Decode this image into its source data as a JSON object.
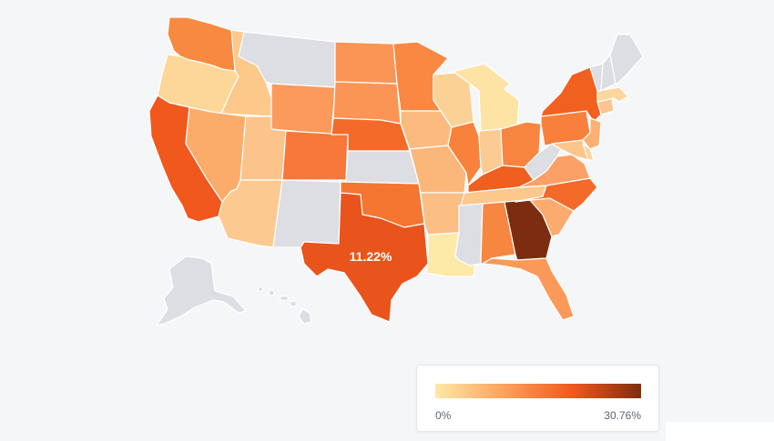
{
  "map": {
    "highlight_label": "11.22%",
    "no_data_color": "#dcdee4",
    "states": [
      {
        "id": "WA",
        "color": "#f78a40"
      },
      {
        "id": "OR",
        "color": "#fcd798"
      },
      {
        "id": "CA",
        "color": "#f0581e"
      },
      {
        "id": "ID",
        "color": "#fcc98a"
      },
      {
        "id": "NV",
        "color": "#fbac6b"
      },
      {
        "id": "MT",
        "color": "#dcdee4"
      },
      {
        "id": "WY",
        "color": "#fb9a5a"
      },
      {
        "id": "UT",
        "color": "#fcc38a"
      },
      {
        "id": "AZ",
        "color": "#fcca90"
      },
      {
        "id": "CO",
        "color": "#f7783a"
      },
      {
        "id": "NM",
        "color": "#dcdee4"
      },
      {
        "id": "ND",
        "color": "#fb9556"
      },
      {
        "id": "SD",
        "color": "#fb9556"
      },
      {
        "id": "NE",
        "color": "#f46a28"
      },
      {
        "id": "KS",
        "color": "#dcdee4"
      },
      {
        "id": "OK",
        "color": "#f47630"
      },
      {
        "id": "TX",
        "color": "#e9541c"
      },
      {
        "id": "MN",
        "color": "#f88842"
      },
      {
        "id": "IA",
        "color": "#fbbb80"
      },
      {
        "id": "MO",
        "color": "#fbb77a"
      },
      {
        "id": "AR",
        "color": "#fbbe84"
      },
      {
        "id": "LA",
        "color": "#fdeaa8"
      },
      {
        "id": "WI",
        "color": "#fcd196"
      },
      {
        "id": "MI",
        "color": "#fde4a4"
      },
      {
        "id": "IL",
        "color": "#f8823c"
      },
      {
        "id": "IN",
        "color": "#fccb94"
      },
      {
        "id": "OH",
        "color": "#f8853f"
      },
      {
        "id": "KY",
        "color": "#ee5f20"
      },
      {
        "id": "TN",
        "color": "#fcc88c"
      },
      {
        "id": "MS",
        "color": "#dcdee4"
      },
      {
        "id": "AL",
        "color": "#f78640"
      },
      {
        "id": "GA",
        "color": "#7d2d0f"
      },
      {
        "id": "FL",
        "color": "#fb9a58"
      },
      {
        "id": "SC",
        "color": "#fbab6e"
      },
      {
        "id": "NC",
        "color": "#f46a2a"
      },
      {
        "id": "VA",
        "color": "#fba066"
      },
      {
        "id": "WV",
        "color": "#dcdee4"
      },
      {
        "id": "PA",
        "color": "#f8803c"
      },
      {
        "id": "NY",
        "color": "#f2601f"
      },
      {
        "id": "MD",
        "color": "#fcc58c"
      },
      {
        "id": "NJ",
        "color": "#fbb074"
      },
      {
        "id": "DE",
        "color": "#fcd296"
      },
      {
        "id": "CT",
        "color": "#fcc590"
      },
      {
        "id": "MA",
        "color": "#fcd79d"
      },
      {
        "id": "VT",
        "color": "#dcdee4"
      },
      {
        "id": "NH",
        "color": "#dcdee4"
      },
      {
        "id": "ME",
        "color": "#dcdee4"
      },
      {
        "id": "AK",
        "color": "#dcdee4"
      },
      {
        "id": "HI",
        "color": "#dcdee4"
      }
    ]
  },
  "legend": {
    "min_label": "0%",
    "max_label": "30.76%",
    "gradient_colors": [
      "#fde9a6",
      "#fba25e",
      "#f0581e",
      "#7d2d0f"
    ]
  }
}
